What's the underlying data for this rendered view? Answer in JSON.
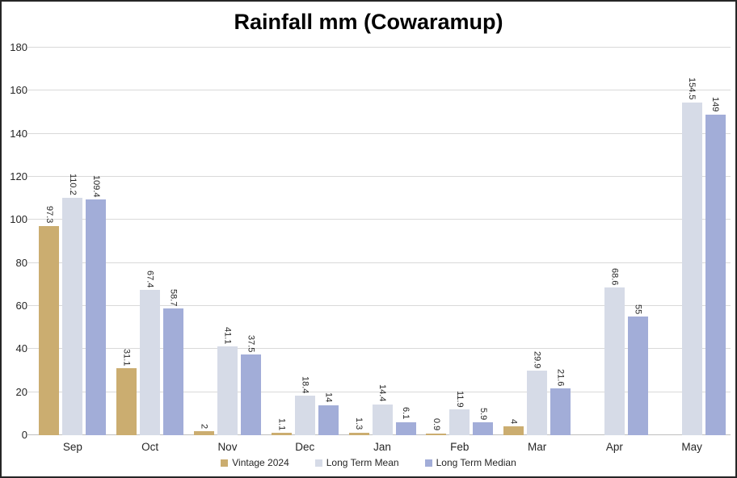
{
  "chart_data": {
    "type": "bar",
    "title": "Rainfall mm (Cowaramup)",
    "categories": [
      "Sep",
      "Oct",
      "Nov",
      "Dec",
      "Jan",
      "Feb",
      "Mar",
      "Apr",
      "May"
    ],
    "series": [
      {
        "name": "Vintage 2024",
        "color": "#CBAD70",
        "values": [
          97.3,
          31.1,
          2,
          1.1,
          1.3,
          0.9,
          4,
          null,
          null
        ]
      },
      {
        "name": "Long Term Mean",
        "color": "#D6DBE7",
        "values": [
          110.2,
          67.4,
          41.1,
          18.4,
          14.4,
          11.9,
          29.9,
          68.6,
          154.5
        ]
      },
      {
        "name": "Long Term Median",
        "color": "#A2ADD8",
        "values": [
          109.4,
          58.7,
          37.5,
          14,
          6.1,
          5.9,
          21.6,
          55,
          149
        ]
      }
    ],
    "ylim": [
      0,
      180
    ],
    "y_ticks": [
      0,
      20,
      40,
      60,
      80,
      100,
      120,
      140,
      160,
      180
    ],
    "grid": "horizontal",
    "legend_position": "bottom",
    "data_labels_rotated": "90deg-read-top-to-bottom",
    "colors": {
      "gridline": "#D9D9D9",
      "axis_line": "#BFBFBF",
      "text": "#262626",
      "title_text": "#000000",
      "frame_border": "#262626",
      "background": "#FFFFFF"
    }
  }
}
